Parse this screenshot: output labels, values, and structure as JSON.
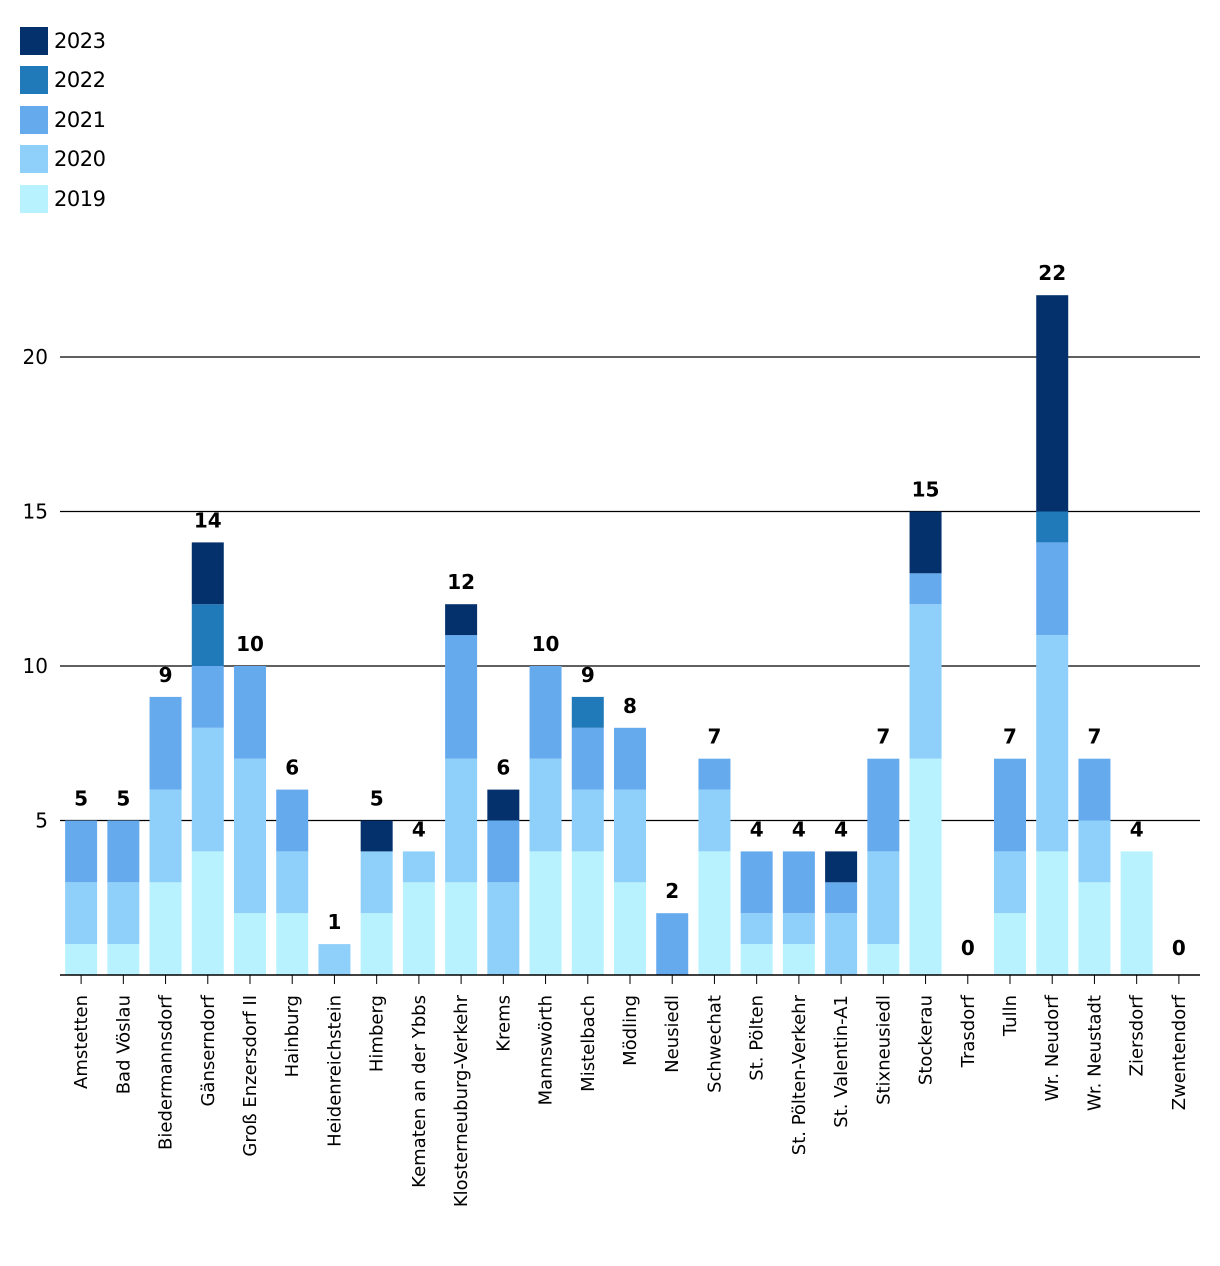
{
  "chart_data": {
    "type": "bar",
    "stacked": true,
    "title": "",
    "xlabel": "",
    "ylabel": "",
    "ylim": [
      0,
      22
    ],
    "yticks": [
      5,
      10,
      15,
      20
    ],
    "grid": true,
    "legend_position": "top-left",
    "categories": [
      "Amstetten",
      "Bad Vöslau",
      "Biedermannsdorf",
      "Gänserndorf",
      "Groß Enzersdorf II",
      "Hainburg",
      "Heidenreichstein",
      "Himberg",
      "Kematen an der Ybbs",
      "Klosterneuburg-Verkehr",
      "Krems",
      "Mannswörth",
      "Mistelbach",
      "Mödling",
      "Neusiedl",
      "Schwechat",
      "St. Pölten",
      "St. Pölten-Verkehr",
      "St. Valentin-A1",
      "Stixneusiedl",
      "Stockerau",
      "Trasdorf",
      "Tulln",
      "Wr. Neudorf",
      "Wr. Neustadt",
      "Ziersdorf",
      "Zwentendorf"
    ],
    "series": [
      {
        "name": "2019",
        "color": "#b8f2ff",
        "values": [
          1,
          1,
          3,
          4,
          2,
          2,
          0,
          2,
          3,
          3,
          0,
          4,
          4,
          3,
          0,
          4,
          1,
          1,
          0,
          1,
          7,
          0,
          2,
          4,
          3,
          4,
          0
        ]
      },
      {
        "name": "2020",
        "color": "#8fd0fb",
        "values": [
          2,
          2,
          3,
          4,
          5,
          2,
          1,
          2,
          1,
          4,
          3,
          3,
          2,
          3,
          0,
          2,
          1,
          1,
          2,
          3,
          5,
          0,
          2,
          7,
          2,
          0,
          0
        ]
      },
      {
        "name": "2021",
        "color": "#66aaee",
        "values": [
          2,
          2,
          3,
          2,
          3,
          2,
          0,
          0,
          0,
          4,
          2,
          3,
          2,
          2,
          2,
          1,
          2,
          2,
          1,
          3,
          1,
          0,
          3,
          3,
          2,
          0,
          0
        ]
      },
      {
        "name": "2022",
        "color": "#2079b9",
        "values": [
          0,
          0,
          0,
          2,
          0,
          0,
          0,
          0,
          0,
          0,
          0,
          0,
          1,
          0,
          0,
          0,
          0,
          0,
          0,
          0,
          0,
          0,
          0,
          1,
          0,
          0,
          0
        ]
      },
      {
        "name": "2023",
        "color": "#04316b",
        "values": [
          0,
          0,
          0,
          2,
          0,
          0,
          0,
          1,
          0,
          1,
          1,
          0,
          0,
          0,
          0,
          0,
          0,
          0,
          1,
          0,
          2,
          0,
          0,
          7,
          0,
          0,
          0
        ]
      }
    ],
    "totals": [
      5,
      5,
      9,
      14,
      10,
      6,
      1,
      5,
      4,
      12,
      6,
      10,
      9,
      8,
      2,
      7,
      4,
      4,
      4,
      7,
      15,
      0,
      7,
      22,
      7,
      4,
      0
    ]
  },
  "legend": {
    "items": [
      {
        "label": "2023",
        "color": "#04316b"
      },
      {
        "label": "2022",
        "color": "#2079b9"
      },
      {
        "label": "2021",
        "color": "#66aaee"
      },
      {
        "label": "2020",
        "color": "#8fd0fb"
      },
      {
        "label": "2019",
        "color": "#b8f2ff"
      }
    ]
  }
}
